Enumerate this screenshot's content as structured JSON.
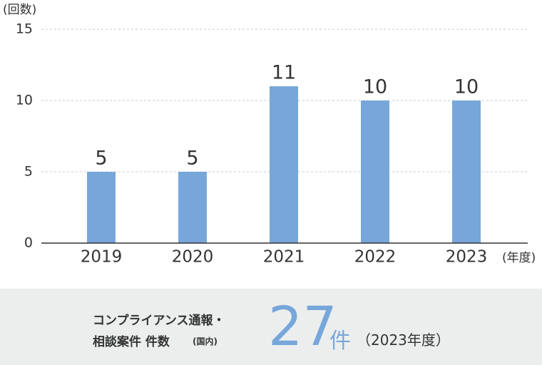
{
  "chart_data": {
    "type": "bar",
    "y_label": "(回数)",
    "x_label": "(年度)",
    "categories": [
      "2019",
      "2020",
      "2021",
      "2022",
      "2023"
    ],
    "values": [
      5,
      5,
      11,
      10,
      10
    ],
    "color": "#77a7da",
    "ylim": [
      0,
      15
    ],
    "yticks": [
      0,
      5,
      10,
      15
    ],
    "grid": true
  },
  "summary": {
    "line1": "コンプライアンス通報・",
    "line2": "相談案件 件数",
    "scope": "(国内)",
    "number": "27",
    "unit": "件",
    "period": "（2023年度）"
  }
}
